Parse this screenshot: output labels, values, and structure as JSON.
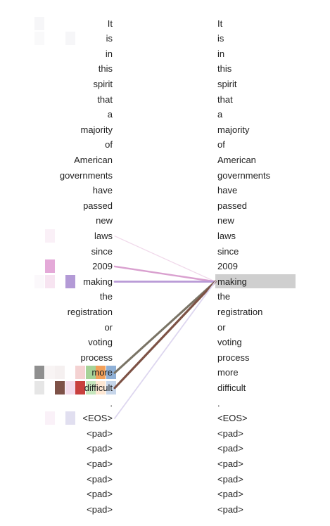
{
  "tokens": [
    "It",
    "is",
    "in",
    "this",
    "spirit",
    "that",
    "a",
    "majority",
    "of",
    "American",
    "governments",
    "have",
    "passed",
    "new",
    "laws",
    "since",
    "2009",
    "making",
    "the",
    "registration",
    "or",
    "voting",
    "process",
    "more",
    "difficult",
    ".",
    "<EOS>",
    "<pad>",
    "<pad>",
    "<pad>",
    "<pad>",
    "<pad>",
    "<pad>"
  ],
  "selected_index": 17,
  "head_colors": [
    "#7f7f7f",
    "#e377c2",
    "#8c564b",
    "#d62728",
    "#2ca02c",
    "#ff7f0e",
    "#1f77b4",
    "#9467bd"
  ],
  "attention": [
    {
      "from": 14,
      "weight": 0.1,
      "color": "#f0d8ea"
    },
    {
      "from": 16,
      "weight": 0.55,
      "color": "#d9a0cf"
    },
    {
      "from": 17,
      "weight": 0.7,
      "color": "#b89ad6"
    },
    {
      "from": 23,
      "weight": 0.8,
      "color": "#7a7466"
    },
    {
      "from": 24,
      "weight": 0.85,
      "color": "#7d5245"
    },
    {
      "from": 26,
      "weight": 0.3,
      "color": "#ddd6ef"
    }
  ],
  "heatmap": [
    {
      "row": 0,
      "col": 0,
      "color": "#f6f6f8"
    },
    {
      "row": 1,
      "col": 0,
      "color": "#f9f9fa"
    },
    {
      "row": 1,
      "col": 3,
      "color": "#f6f6f8"
    },
    {
      "row": 14,
      "col": 1,
      "color": "#faf0f7"
    },
    {
      "row": 16,
      "col": 1,
      "color": "#e4a9d8"
    },
    {
      "row": 17,
      "col": 0,
      "color": "#fbf8fb"
    },
    {
      "row": 17,
      "col": 1,
      "color": "#f7e4f1"
    },
    {
      "row": 17,
      "col": 3,
      "color": "#b39ad6"
    },
    {
      "row": 23,
      "col": 0,
      "color": "#8f8f8f"
    },
    {
      "row": 23,
      "col": 1,
      "color": "#f8f4f4"
    },
    {
      "row": 23,
      "col": 2,
      "color": "#f5f0f0"
    },
    {
      "row": 23,
      "col": 4,
      "color": "#f4d2d2"
    },
    {
      "row": 23,
      "col": 5,
      "color": "#a6d398"
    },
    {
      "row": 23,
      "col": 6,
      "color": "#f2a05a"
    },
    {
      "row": 23,
      "col": 7,
      "color": "#8fb0d6"
    },
    {
      "row": 24,
      "col": 0,
      "color": "#e6e6e6"
    },
    {
      "row": 24,
      "col": 2,
      "color": "#7e5248"
    },
    {
      "row": 24,
      "col": 3,
      "color": "#f4dcec"
    },
    {
      "row": 24,
      "col": 4,
      "color": "#c8403e"
    },
    {
      "row": 24,
      "col": 5,
      "color": "#c7e6be"
    },
    {
      "row": 24,
      "col": 6,
      "color": "#fde7d3"
    },
    {
      "row": 24,
      "col": 7,
      "color": "#c7d6ea"
    },
    {
      "row": 26,
      "col": 1,
      "color": "#faf1f8"
    },
    {
      "row": 26,
      "col": 3,
      "color": "#e1dff0"
    }
  ]
}
